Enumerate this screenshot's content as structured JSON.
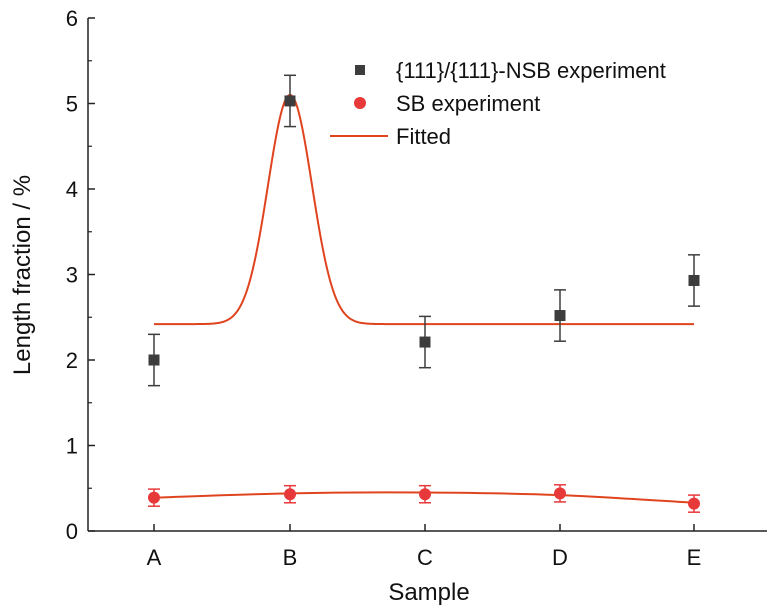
{
  "chart_data": {
    "type": "scatter",
    "title": "",
    "xlabel": "Sample",
    "ylabel": "Length fraction / %",
    "categories": [
      "A",
      "B",
      "C",
      "D",
      "E"
    ],
    "ylim": [
      0,
      6
    ],
    "yticks": [
      "0",
      "1",
      "2",
      "3",
      "4",
      "5",
      "6"
    ],
    "grid": false,
    "legend_position": "top-right",
    "series": [
      {
        "name": "{111}/{111}-NSB experiment",
        "marker": "square",
        "color": "#3d3d3d",
        "values": [
          2.0,
          5.03,
          2.21,
          2.52,
          2.93
        ],
        "errors": [
          0.3,
          0.3,
          0.3,
          0.3,
          0.3
        ]
      },
      {
        "name": "SB experiment",
        "marker": "circle",
        "color": "#e8393a",
        "values": [
          0.39,
          0.43,
          0.43,
          0.44,
          0.32
        ],
        "errors": [
          0.1,
          0.1,
          0.1,
          0.1,
          0.1
        ]
      }
    ],
    "fitted": {
      "name": "Fitted",
      "color": "#e0441f",
      "nsb_fit": {
        "baseline": 2.42,
        "peak_value": 5.1,
        "peak_at": "B"
      },
      "sb_fit": {
        "x": [
          "A",
          "B",
          "C",
          "D",
          "E"
        ],
        "y": [
          0.39,
          0.44,
          0.45,
          0.42,
          0.33
        ]
      }
    }
  }
}
